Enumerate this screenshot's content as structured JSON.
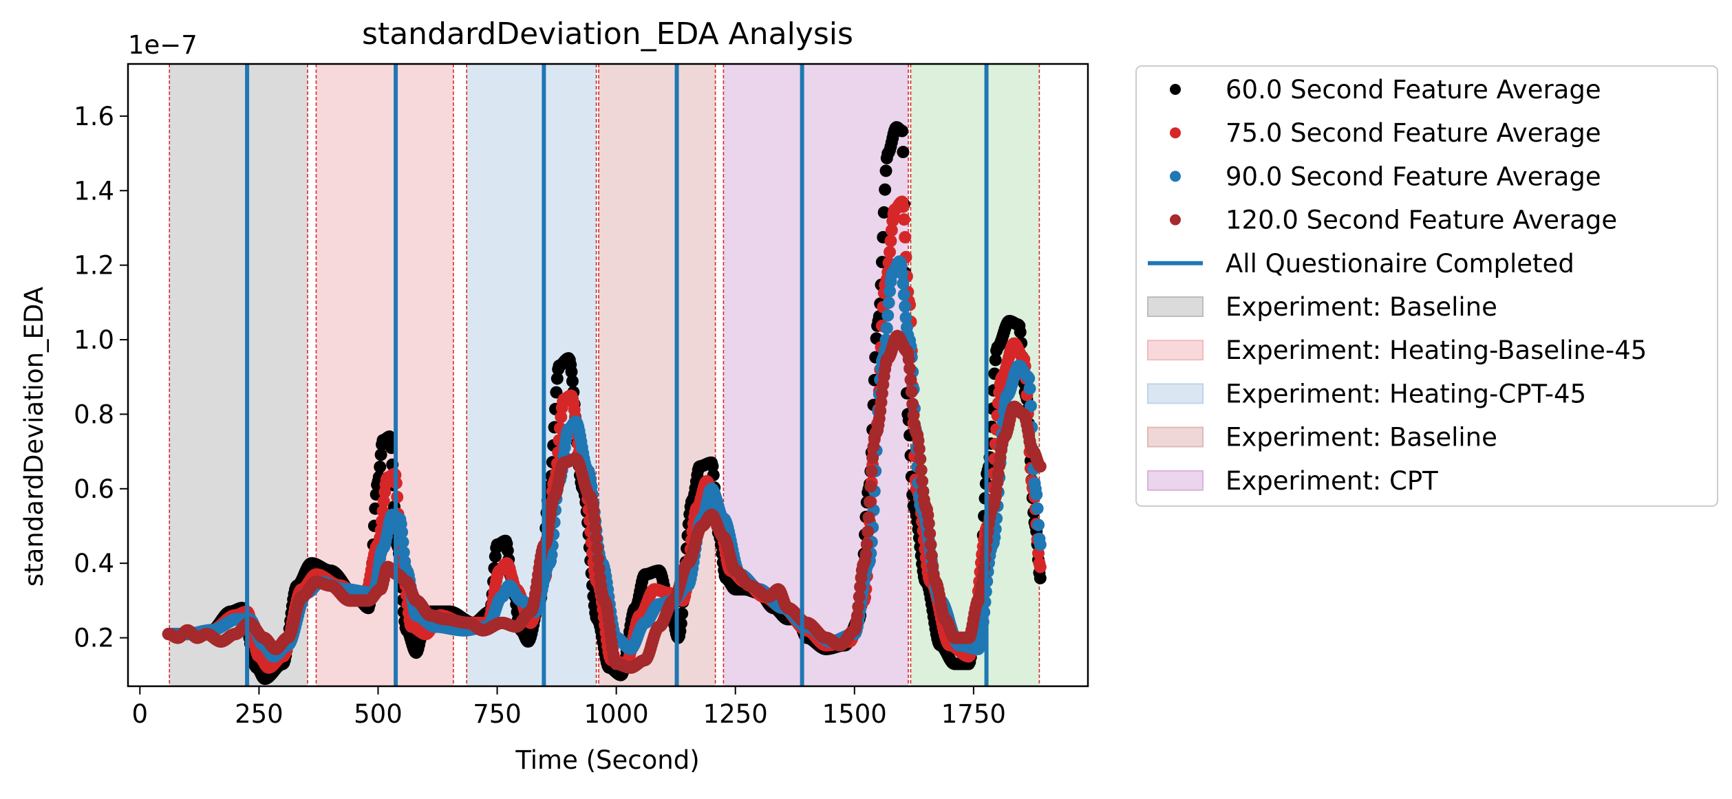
{
  "chart_data": {
    "type": "scatter",
    "title": "standardDeviation_EDA Analysis",
    "xlabel": "Time (Second)",
    "ylabel": "standardDeviation_EDA",
    "y_offset_label": "1e−7",
    "y_scale_factor": 1e-07,
    "xlim": [
      -25,
      1990
    ],
    "ylim": [
      0.07,
      1.74
    ],
    "x_ticks": [
      0,
      250,
      500,
      750,
      1000,
      1250,
      1500,
      1750
    ],
    "y_ticks": [
      0.2,
      0.4,
      0.6,
      0.8,
      1.0,
      1.2,
      1.4,
      1.6
    ],
    "y_tick_labels": [
      "0.2",
      "0.4",
      "0.6",
      "0.8",
      "1.0",
      "1.2",
      "1.4",
      "1.6"
    ],
    "grid": false,
    "legend_position": "outside-right",
    "regions": [
      {
        "label": "Experiment: Baseline",
        "start": 62,
        "end": 352,
        "color": "#bdbdbd",
        "in_legend": true
      },
      {
        "label": "Experiment: Heating-Baseline-45",
        "start": 370,
        "end": 658,
        "color": "#f2b9bd",
        "in_legend": true
      },
      {
        "label": "Experiment: Heating-CPT-45",
        "start": 686,
        "end": 958,
        "color": "#bcd4ea",
        "in_legend": true
      },
      {
        "label": "Experiment: Baseline",
        "start": 963,
        "end": 1208,
        "color": "#e2b7b7",
        "in_legend": true
      },
      {
        "label": "Experiment: CPT",
        "start": 1225,
        "end": 1613,
        "color": "#d9b3dd",
        "in_legend": true
      },
      {
        "label": "",
        "start": 1618,
        "end": 1888,
        "color": "#bfe3bf",
        "in_legend": false
      }
    ],
    "region_boundaries": [
      62,
      352,
      370,
      658,
      686,
      958,
      963,
      1208,
      1225,
      1613,
      1618,
      1888
    ],
    "questionnaire_lines": {
      "label": "All Questionaire Completed",
      "color": "#1f77b4",
      "x": [
        225,
        537,
        848,
        1127,
        1390,
        1777
      ]
    },
    "series": [
      {
        "name": "60.0 Second Feature Average",
        "color": "#000000",
        "points": [
          [
            60,
            0.21
          ],
          [
            100,
            0.21
          ],
          [
            150,
            0.22
          ],
          [
            190,
            0.27
          ],
          [
            215,
            0.28
          ],
          [
            245,
            0.12
          ],
          [
            262,
            0.09
          ],
          [
            300,
            0.13
          ],
          [
            330,
            0.34
          ],
          [
            360,
            0.4
          ],
          [
            400,
            0.38
          ],
          [
            460,
            0.3
          ],
          [
            480,
            0.28
          ],
          [
            500,
            0.62
          ],
          [
            510,
            0.73
          ],
          [
            525,
            0.74
          ],
          [
            540,
            0.45
          ],
          [
            560,
            0.22
          ],
          [
            580,
            0.16
          ],
          [
            595,
            0.22
          ],
          [
            610,
            0.27
          ],
          [
            650,
            0.27
          ],
          [
            700,
            0.24
          ],
          [
            735,
            0.27
          ],
          [
            750,
            0.45
          ],
          [
            768,
            0.46
          ],
          [
            780,
            0.36
          ],
          [
            800,
            0.22
          ],
          [
            815,
            0.19
          ],
          [
            840,
            0.3
          ],
          [
            860,
            0.6
          ],
          [
            880,
            0.93
          ],
          [
            900,
            0.95
          ],
          [
            930,
            0.6
          ],
          [
            960,
            0.25
          ],
          [
            985,
            0.12
          ],
          [
            1010,
            0.1
          ],
          [
            1040,
            0.28
          ],
          [
            1060,
            0.37
          ],
          [
            1090,
            0.38
          ],
          [
            1110,
            0.3
          ],
          [
            1130,
            0.2
          ],
          [
            1160,
            0.57
          ],
          [
            1175,
            0.66
          ],
          [
            1200,
            0.67
          ],
          [
            1215,
            0.48
          ],
          [
            1230,
            0.36
          ],
          [
            1250,
            0.33
          ],
          [
            1270,
            0.33
          ],
          [
            1300,
            0.32
          ],
          [
            1330,
            0.28
          ],
          [
            1360,
            0.25
          ],
          [
            1380,
            0.25
          ],
          [
            1400,
            0.2
          ],
          [
            1440,
            0.17
          ],
          [
            1480,
            0.18
          ],
          [
            1510,
            0.25
          ],
          [
            1530,
            0.6
          ],
          [
            1550,
            1.05
          ],
          [
            1570,
            1.5
          ],
          [
            1588,
            1.57
          ],
          [
            1600,
            1.56
          ],
          [
            1612,
            0.8
          ],
          [
            1625,
            0.55
          ],
          [
            1650,
            0.35
          ],
          [
            1680,
            0.18
          ],
          [
            1710,
            0.13
          ],
          [
            1740,
            0.13
          ],
          [
            1760,
            0.3
          ],
          [
            1780,
            0.65
          ],
          [
            1800,
            0.98
          ],
          [
            1825,
            1.05
          ],
          [
            1845,
            1.04
          ],
          [
            1860,
            0.85
          ],
          [
            1880,
            0.5
          ],
          [
            1890,
            0.36
          ]
        ]
      },
      {
        "name": "75.0 Second Feature Average",
        "color": "#d62728",
        "points": [
          [
            60,
            0.21
          ],
          [
            100,
            0.21
          ],
          [
            150,
            0.22
          ],
          [
            200,
            0.26
          ],
          [
            225,
            0.27
          ],
          [
            250,
            0.15
          ],
          [
            270,
            0.12
          ],
          [
            300,
            0.15
          ],
          [
            340,
            0.33
          ],
          [
            370,
            0.37
          ],
          [
            420,
            0.34
          ],
          [
            470,
            0.3
          ],
          [
            500,
            0.45
          ],
          [
            520,
            0.63
          ],
          [
            535,
            0.64
          ],
          [
            550,
            0.4
          ],
          [
            570,
            0.23
          ],
          [
            600,
            0.21
          ],
          [
            630,
            0.26
          ],
          [
            680,
            0.24
          ],
          [
            730,
            0.24
          ],
          [
            755,
            0.38
          ],
          [
            770,
            0.4
          ],
          [
            790,
            0.33
          ],
          [
            820,
            0.24
          ],
          [
            850,
            0.36
          ],
          [
            870,
            0.62
          ],
          [
            890,
            0.84
          ],
          [
            905,
            0.85
          ],
          [
            930,
            0.65
          ],
          [
            960,
            0.35
          ],
          [
            990,
            0.14
          ],
          [
            1020,
            0.13
          ],
          [
            1050,
            0.26
          ],
          [
            1080,
            0.33
          ],
          [
            1110,
            0.32
          ],
          [
            1140,
            0.3
          ],
          [
            1170,
            0.55
          ],
          [
            1190,
            0.62
          ],
          [
            1210,
            0.55
          ],
          [
            1240,
            0.38
          ],
          [
            1270,
            0.35
          ],
          [
            1310,
            0.31
          ],
          [
            1350,
            0.28
          ],
          [
            1400,
            0.22
          ],
          [
            1440,
            0.18
          ],
          [
            1490,
            0.19
          ],
          [
            1520,
            0.3
          ],
          [
            1545,
            0.75
          ],
          [
            1565,
            1.15
          ],
          [
            1585,
            1.35
          ],
          [
            1600,
            1.37
          ],
          [
            1615,
            1.1
          ],
          [
            1630,
            0.6
          ],
          [
            1660,
            0.35
          ],
          [
            1700,
            0.18
          ],
          [
            1740,
            0.15
          ],
          [
            1780,
            0.5
          ],
          [
            1810,
            0.9
          ],
          [
            1835,
            0.99
          ],
          [
            1855,
            0.95
          ],
          [
            1875,
            0.6
          ],
          [
            1890,
            0.39
          ]
        ]
      },
      {
        "name": "90.0 Second Feature Average",
        "color": "#1f77b4",
        "points": [
          [
            60,
            0.21
          ],
          [
            100,
            0.21
          ],
          [
            150,
            0.22
          ],
          [
            205,
            0.25
          ],
          [
            230,
            0.25
          ],
          [
            260,
            0.18
          ],
          [
            280,
            0.15
          ],
          [
            310,
            0.18
          ],
          [
            350,
            0.32
          ],
          [
            380,
            0.35
          ],
          [
            430,
            0.33
          ],
          [
            490,
            0.32
          ],
          [
            510,
            0.44
          ],
          [
            530,
            0.53
          ],
          [
            545,
            0.52
          ],
          [
            560,
            0.38
          ],
          [
            580,
            0.26
          ],
          [
            620,
            0.23
          ],
          [
            680,
            0.22
          ],
          [
            730,
            0.23
          ],
          [
            760,
            0.31
          ],
          [
            775,
            0.34
          ],
          [
            800,
            0.3
          ],
          [
            830,
            0.27
          ],
          [
            860,
            0.4
          ],
          [
            880,
            0.62
          ],
          [
            900,
            0.76
          ],
          [
            915,
            0.78
          ],
          [
            940,
            0.65
          ],
          [
            970,
            0.4
          ],
          [
            1000,
            0.2
          ],
          [
            1030,
            0.17
          ],
          [
            1060,
            0.24
          ],
          [
            1090,
            0.29
          ],
          [
            1120,
            0.3
          ],
          [
            1150,
            0.34
          ],
          [
            1180,
            0.52
          ],
          [
            1200,
            0.6
          ],
          [
            1225,
            0.52
          ],
          [
            1260,
            0.37
          ],
          [
            1300,
            0.33
          ],
          [
            1350,
            0.28
          ],
          [
            1400,
            0.23
          ],
          [
            1450,
            0.19
          ],
          [
            1500,
            0.21
          ],
          [
            1530,
            0.4
          ],
          [
            1560,
            0.95
          ],
          [
            1580,
            1.18
          ],
          [
            1595,
            1.21
          ],
          [
            1615,
            1.0
          ],
          [
            1640,
            0.55
          ],
          [
            1680,
            0.3
          ],
          [
            1720,
            0.18
          ],
          [
            1760,
            0.17
          ],
          [
            1790,
            0.45
          ],
          [
            1820,
            0.85
          ],
          [
            1845,
            0.93
          ],
          [
            1865,
            0.9
          ],
          [
            1880,
            0.6
          ],
          [
            1890,
            0.45
          ]
        ]
      },
      {
        "name": "120.0 Second Feature Average",
        "color": "#a6292b",
        "points": [
          [
            60,
            0.21
          ],
          [
            80,
            0.2
          ],
          [
            100,
            0.22
          ],
          [
            120,
            0.2
          ],
          [
            140,
            0.21
          ],
          [
            170,
            0.19
          ],
          [
            200,
            0.21
          ],
          [
            230,
            0.24
          ],
          [
            260,
            0.2
          ],
          [
            285,
            0.17
          ],
          [
            310,
            0.2
          ],
          [
            340,
            0.31
          ],
          [
            370,
            0.35
          ],
          [
            400,
            0.34
          ],
          [
            440,
            0.3
          ],
          [
            480,
            0.3
          ],
          [
            505,
            0.33
          ],
          [
            520,
            0.39
          ],
          [
            540,
            0.37
          ],
          [
            560,
            0.35
          ],
          [
            580,
            0.3
          ],
          [
            610,
            0.26
          ],
          [
            640,
            0.25
          ],
          [
            690,
            0.24
          ],
          [
            720,
            0.22
          ],
          [
            760,
            0.24
          ],
          [
            790,
            0.23
          ],
          [
            820,
            0.27
          ],
          [
            850,
            0.45
          ],
          [
            870,
            0.58
          ],
          [
            890,
            0.67
          ],
          [
            915,
            0.68
          ],
          [
            945,
            0.58
          ],
          [
            975,
            0.3
          ],
          [
            1000,
            0.13
          ],
          [
            1030,
            0.12
          ],
          [
            1060,
            0.14
          ],
          [
            1090,
            0.23
          ],
          [
            1120,
            0.3
          ],
          [
            1150,
            0.4
          ],
          [
            1180,
            0.5
          ],
          [
            1200,
            0.53
          ],
          [
            1225,
            0.47
          ],
          [
            1250,
            0.38
          ],
          [
            1280,
            0.34
          ],
          [
            1320,
            0.31
          ],
          [
            1340,
            0.33
          ],
          [
            1360,
            0.28
          ],
          [
            1400,
            0.24
          ],
          [
            1440,
            0.2
          ],
          [
            1470,
            0.18
          ],
          [
            1500,
            0.22
          ],
          [
            1520,
            0.4
          ],
          [
            1545,
            0.75
          ],
          [
            1570,
            0.95
          ],
          [
            1590,
            1.01
          ],
          [
            1610,
            0.97
          ],
          [
            1630,
            0.75
          ],
          [
            1650,
            0.55
          ],
          [
            1670,
            0.35
          ],
          [
            1690,
            0.25
          ],
          [
            1710,
            0.2
          ],
          [
            1740,
            0.2
          ],
          [
            1760,
            0.3
          ],
          [
            1790,
            0.55
          ],
          [
            1815,
            0.74
          ],
          [
            1835,
            0.82
          ],
          [
            1855,
            0.8
          ],
          [
            1875,
            0.7
          ],
          [
            1890,
            0.66
          ]
        ]
      }
    ]
  }
}
